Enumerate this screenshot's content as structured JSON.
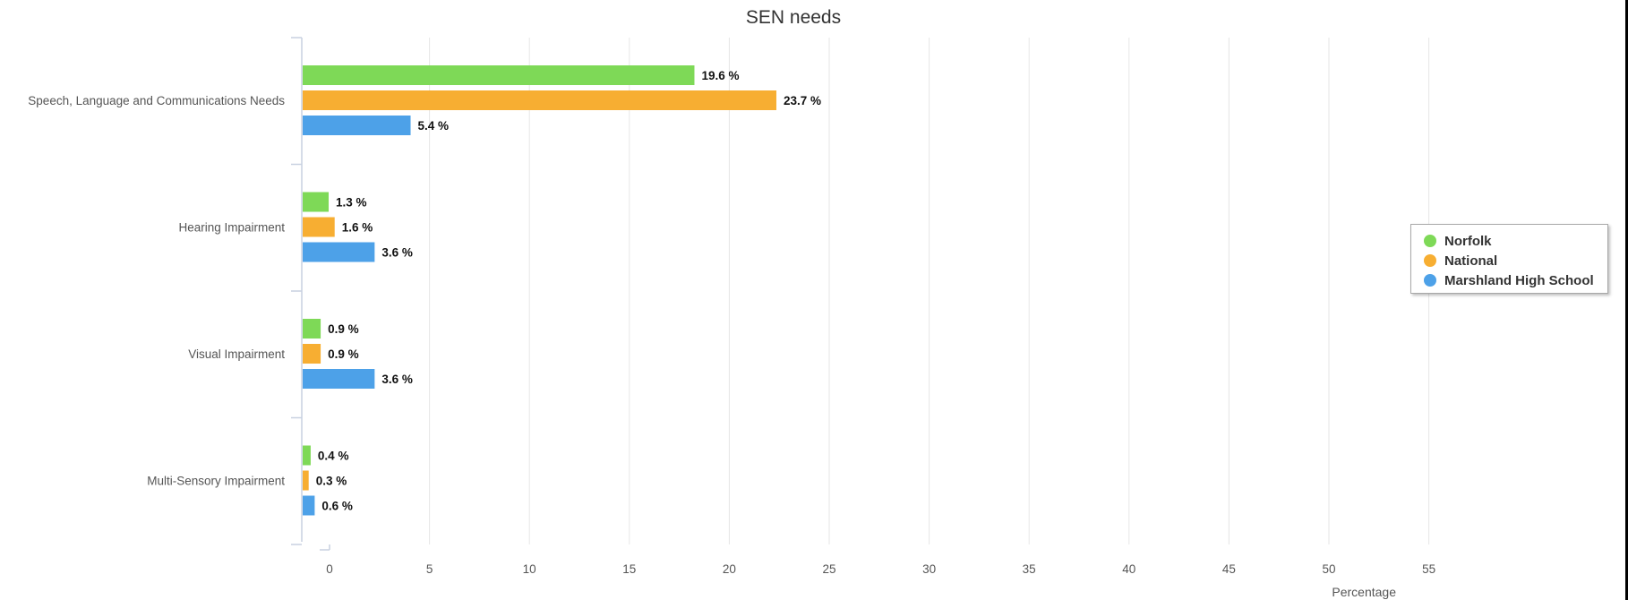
{
  "colors": {
    "norfolk": "#7ed957",
    "national": "#f7ae32",
    "marshland": "#4da1e8",
    "grid": "#e6e6e6",
    "axis": "#c8d1e0",
    "text": "#555555"
  },
  "chart_data": {
    "type": "bar",
    "orientation": "horizontal",
    "title": "SEN needs",
    "xlabel": "Percentage",
    "ylabel": "",
    "xlim": [
      -2,
      56
    ],
    "xticks": [
      0,
      5,
      10,
      15,
      20,
      25,
      30,
      35,
      40,
      45,
      50,
      55
    ],
    "grid": true,
    "legend_position": "right",
    "value_suffix": " %",
    "categories": [
      "Speech, Language and Communications Needs",
      "Hearing Impairment",
      "Visual Impairment",
      "Multi-Sensory Impairment"
    ],
    "series": [
      {
        "name": "Norfolk",
        "color": "#7ed957",
        "values": [
          19.6,
          1.3,
          0.9,
          0.4
        ]
      },
      {
        "name": "National",
        "color": "#f7ae32",
        "values": [
          23.7,
          1.6,
          0.9,
          0.3
        ]
      },
      {
        "name": "Marshland High School",
        "color": "#4da1e8",
        "values": [
          5.4,
          3.6,
          3.6,
          0.6
        ]
      }
    ]
  }
}
